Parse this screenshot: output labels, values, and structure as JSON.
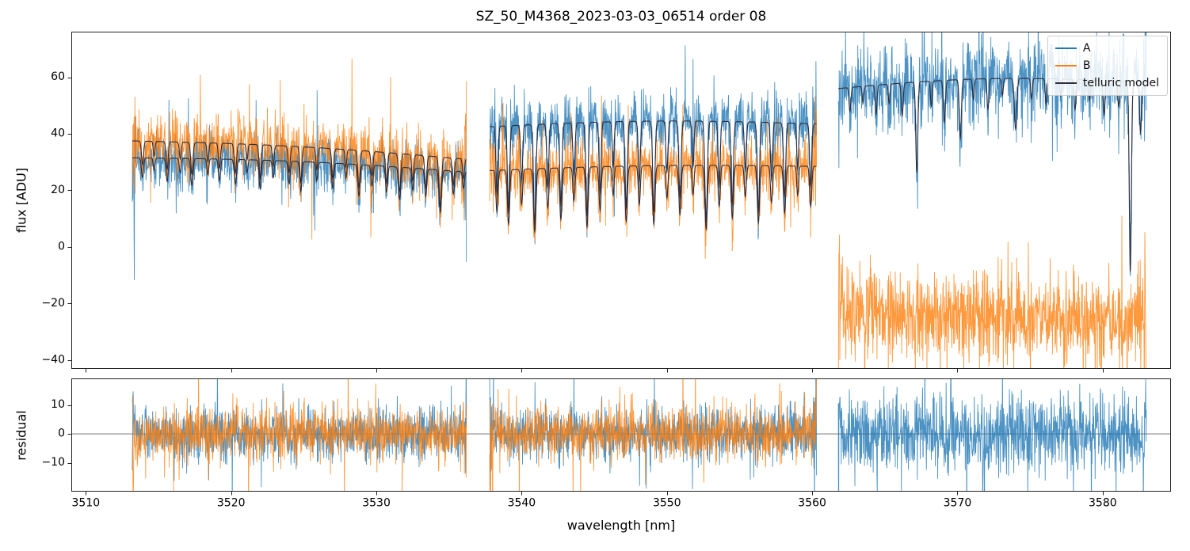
{
  "chart_data": {
    "type": "line",
    "title": "SZ_50_M4368_2023-03-03_06514  order 08",
    "xlabel": "wavelength [nm]",
    "ylabel_top": "flux [ADU]",
    "ylabel_bottom": "residual",
    "xlim": [
      3509.0,
      3584.7
    ],
    "ylim_top": [
      -43.1,
      76.1
    ],
    "ylim_bottom": [
      -20.0,
      19.2
    ],
    "xticks": [
      3510,
      3520,
      3530,
      3540,
      3550,
      3560,
      3570,
      3580
    ],
    "yticks_top": [
      -40,
      -20,
      0,
      20,
      40,
      60
    ],
    "yticks_bottom": [
      -10,
      0,
      10
    ],
    "grid": false,
    "legend_position": "upper right",
    "legend": [
      {
        "label": "A",
        "color": "#1f77b4"
      },
      {
        "label": "B",
        "color": "#ff7f0e"
      },
      {
        "label": "telluric model",
        "color": "#2e2e3e"
      }
    ],
    "colors": {
      "A": "#1f77b4",
      "B": "#ff7f0e",
      "model": "#2e2e3e",
      "zero_line": "#666666",
      "spine": "#222222"
    },
    "sampling_step_nm": 0.02,
    "noise_seed": 42,
    "tail_probability": 0.035,
    "tail_factor": 2.6,
    "edge_boost": {
      "amplitude": 2.6,
      "scale_nm": 0.12
    },
    "segments": [
      {
        "x_start": 3513.2,
        "x_end": 3536.2,
        "series": {
          "A": {
            "level_start": 31.5,
            "level_end": 26.5,
            "arch": 1.2,
            "noise": 4.5,
            "has_model": true
          },
          "B": {
            "level_start": 37.5,
            "level_end": 31.0,
            "arch": 1.2,
            "noise": 4.8,
            "has_model": true
          }
        },
        "residual": {
          "A": 4.2,
          "B": 4.6
        }
      },
      {
        "x_start": 3537.8,
        "x_end": 3560.3,
        "series": {
          "A": {
            "level_start": 42.5,
            "level_end": 43.5,
            "arch": 1.5,
            "noise": 4.8,
            "has_model": true
          },
          "B": {
            "level_start": 27.0,
            "level_end": 28.5,
            "arch": 1.0,
            "noise": 4.8,
            "has_model": true
          }
        },
        "residual": {
          "A": 4.5,
          "B": 4.6
        }
      },
      {
        "x_start": 3561.8,
        "x_end": 3583.0,
        "series": {
          "A": {
            "level_start": 56.0,
            "level_end": 58.0,
            "arch": 2.5,
            "noise": 7.0,
            "has_model": true
          },
          "B": {
            "level_start": -22.5,
            "level_end": -25.5,
            "arch": -1.0,
            "noise": 8.0,
            "has_model": false
          }
        },
        "residual": {
          "A": 6.5,
          "B": null
        }
      }
    ],
    "telluric_lines": [
      [
        3513.9,
        0.22,
        0.1
      ],
      [
        3514.7,
        0.14,
        0.08
      ],
      [
        3515.6,
        0.26,
        0.1
      ],
      [
        3516.5,
        0.16,
        0.09
      ],
      [
        3517.3,
        0.3,
        0.11
      ],
      [
        3518.4,
        0.18,
        0.09
      ],
      [
        3519.2,
        0.24,
        0.1
      ],
      [
        3520.3,
        0.28,
        0.11
      ],
      [
        3521.1,
        0.15,
        0.08
      ],
      [
        3522.0,
        0.33,
        0.1
      ],
      [
        3522.9,
        0.2,
        0.09
      ],
      [
        3524.0,
        0.26,
        0.1
      ],
      [
        3524.8,
        0.35,
        0.1
      ],
      [
        3525.9,
        0.22,
        0.09
      ],
      [
        3527.0,
        0.3,
        0.1
      ],
      [
        3527.9,
        0.18,
        0.08
      ],
      [
        3528.8,
        0.38,
        0.11
      ],
      [
        3529.7,
        0.25,
        0.1
      ],
      [
        3530.7,
        0.32,
        0.1
      ],
      [
        3531.6,
        0.4,
        0.11
      ],
      [
        3532.5,
        0.28,
        0.1
      ],
      [
        3533.4,
        0.35,
        0.1
      ],
      [
        3534.4,
        0.55,
        0.12
      ],
      [
        3535.3,
        0.3,
        0.1
      ],
      [
        3536.0,
        0.22,
        0.09
      ],
      [
        3538.3,
        0.55,
        0.1
      ],
      [
        3539.1,
        0.7,
        0.11
      ],
      [
        3540.0,
        0.45,
        0.1
      ],
      [
        3540.9,
        0.8,
        0.12
      ],
      [
        3541.8,
        0.5,
        0.1
      ],
      [
        3542.7,
        0.65,
        0.11
      ],
      [
        3543.6,
        0.42,
        0.1
      ],
      [
        3544.5,
        0.75,
        0.11
      ],
      [
        3545.4,
        0.55,
        0.1
      ],
      [
        3546.3,
        0.36,
        0.09
      ],
      [
        3547.2,
        0.68,
        0.11
      ],
      [
        3548.1,
        0.48,
        0.1
      ],
      [
        3549.1,
        0.72,
        0.11
      ],
      [
        3550.0,
        0.4,
        0.1
      ],
      [
        3550.9,
        0.6,
        0.11
      ],
      [
        3551.8,
        0.36,
        0.09
      ],
      [
        3552.7,
        0.78,
        0.12
      ],
      [
        3553.6,
        0.5,
        0.1
      ],
      [
        3554.5,
        0.65,
        0.11
      ],
      [
        3555.4,
        0.38,
        0.1
      ],
      [
        3556.3,
        0.7,
        0.11
      ],
      [
        3557.2,
        0.45,
        0.1
      ],
      [
        3558.1,
        0.58,
        0.11
      ],
      [
        3559.0,
        0.36,
        0.09
      ],
      [
        3559.9,
        0.5,
        0.1
      ],
      [
        3562.6,
        0.15,
        0.09
      ],
      [
        3563.5,
        0.1,
        0.08
      ],
      [
        3564.4,
        0.18,
        0.09
      ],
      [
        3565.3,
        0.12,
        0.08
      ],
      [
        3566.2,
        0.2,
        0.09
      ],
      [
        3567.2,
        0.55,
        0.1
      ],
      [
        3568.2,
        0.15,
        0.08
      ],
      [
        3569.1,
        0.25,
        0.1
      ],
      [
        3570.2,
        0.35,
        0.1
      ],
      [
        3571.1,
        0.12,
        0.08
      ],
      [
        3572.1,
        0.18,
        0.09
      ],
      [
        3573.1,
        0.1,
        0.08
      ],
      [
        3574.0,
        0.3,
        0.12
      ],
      [
        3575.1,
        0.12,
        0.08
      ],
      [
        3576.1,
        0.15,
        0.08
      ],
      [
        3577.1,
        0.1,
        0.08
      ],
      [
        3578.1,
        0.18,
        0.09
      ],
      [
        3579.1,
        0.12,
        0.08
      ],
      [
        3580.1,
        0.2,
        0.09
      ],
      [
        3581.1,
        0.15,
        0.08
      ],
      [
        3581.9,
        1.15,
        0.1
      ],
      [
        3582.6,
        0.3,
        0.09
      ]
    ]
  }
}
